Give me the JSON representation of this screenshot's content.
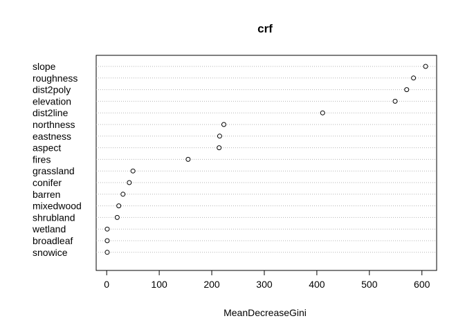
{
  "chart_data": {
    "type": "scatter",
    "title": "crf",
    "xlabel": "MeanDecreaseGini",
    "ylabel": "",
    "xlim": [
      -20,
      628
    ],
    "x_ticks": [
      0,
      100,
      200,
      300,
      400,
      500,
      600
    ],
    "grid": "dotted horizontal lines per category",
    "categories": [
      "slope",
      "roughness",
      "dist2poly",
      "elevation",
      "dist2line",
      "northness",
      "eastness",
      "aspect",
      "fires",
      "grassland",
      "conifer",
      "barren",
      "mixedwood",
      "shrubland",
      "wetland",
      "broadleaf",
      "snowice"
    ],
    "values": [
      607,
      584,
      571,
      549,
      411,
      223,
      215,
      214,
      155,
      50,
      43,
      31,
      23,
      20,
      1,
      1,
      1
    ]
  }
}
